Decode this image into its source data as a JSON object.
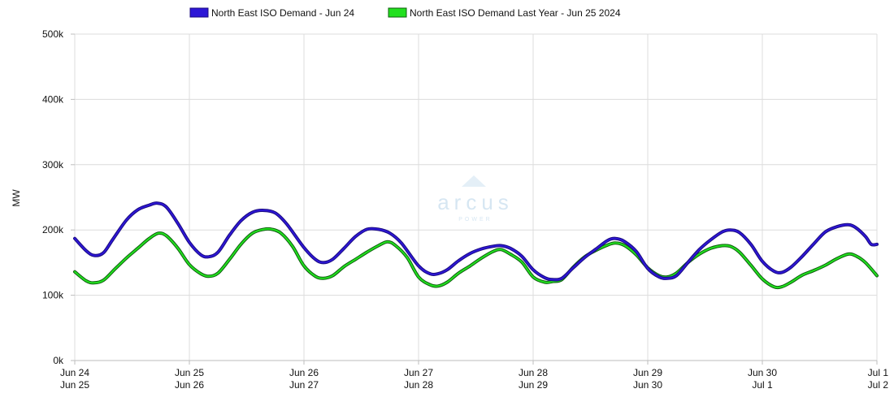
{
  "watermark": {
    "brand": "arcus",
    "sub": "POWER"
  },
  "chart_data": {
    "type": "line",
    "ylabel": "MW",
    "ylim": [
      0,
      500000
    ],
    "y_ticks": [
      {
        "value": 0,
        "label": "0k"
      },
      {
        "value": 100000,
        "label": "100k"
      },
      {
        "value": 200000,
        "label": "200k"
      },
      {
        "value": 300000,
        "label": "300k"
      },
      {
        "value": 400000,
        "label": "400k"
      },
      {
        "value": 500000,
        "label": "500k"
      }
    ],
    "x_range_days": [
      0,
      7
    ],
    "x_ticks": [
      {
        "day": 0,
        "label1": "Jun 24",
        "label2": "Jun 25"
      },
      {
        "day": 1,
        "label1": "Jun 25",
        "label2": "Jun 26"
      },
      {
        "day": 2,
        "label1": "Jun 26",
        "label2": "Jun 27"
      },
      {
        "day": 3,
        "label1": "Jun 27",
        "label2": "Jun 28"
      },
      {
        "day": 4,
        "label1": "Jun 28",
        "label2": "Jun 29"
      },
      {
        "day": 5,
        "label1": "Jun 29",
        "label2": "Jun 30"
      },
      {
        "day": 6,
        "label1": "Jun 30",
        "label2": "Jul 1"
      },
      {
        "day": 7,
        "label1": "Jul 1",
        "label2": "Jul 2"
      }
    ],
    "grid": true,
    "legend_position": "top-center",
    "series": [
      {
        "name": "North East ISO Demand - Jun 24",
        "color": "#2d17d6",
        "outline": "#1a0a80",
        "points": [
          [
            0.0,
            187000
          ],
          [
            0.1,
            168000
          ],
          [
            0.17,
            161000
          ],
          [
            0.25,
            165000
          ],
          [
            0.33,
            185000
          ],
          [
            0.45,
            215000
          ],
          [
            0.55,
            231000
          ],
          [
            0.65,
            238000
          ],
          [
            0.72,
            241000
          ],
          [
            0.8,
            235000
          ],
          [
            0.9,
            210000
          ],
          [
            1.0,
            181000
          ],
          [
            1.1,
            162000
          ],
          [
            1.17,
            159000
          ],
          [
            1.25,
            166000
          ],
          [
            1.35,
            192000
          ],
          [
            1.45,
            214000
          ],
          [
            1.55,
            227000
          ],
          [
            1.65,
            230000
          ],
          [
            1.75,
            226000
          ],
          [
            1.85,
            209000
          ],
          [
            2.0,
            173000
          ],
          [
            2.1,
            155000
          ],
          [
            2.17,
            150000
          ],
          [
            2.25,
            155000
          ],
          [
            2.35,
            172000
          ],
          [
            2.45,
            190000
          ],
          [
            2.55,
            201000
          ],
          [
            2.65,
            201000
          ],
          [
            2.75,
            195000
          ],
          [
            2.85,
            180000
          ],
          [
            3.0,
            145000
          ],
          [
            3.1,
            133000
          ],
          [
            3.17,
            133000
          ],
          [
            3.25,
            139000
          ],
          [
            3.35,
            153000
          ],
          [
            3.45,
            164000
          ],
          [
            3.55,
            171000
          ],
          [
            3.65,
            175000
          ],
          [
            3.72,
            176000
          ],
          [
            3.8,
            172000
          ],
          [
            3.9,
            160000
          ],
          [
            4.0,
            139000
          ],
          [
            4.1,
            127000
          ],
          [
            4.17,
            124000
          ],
          [
            4.25,
            126000
          ],
          [
            4.35,
            142000
          ],
          [
            4.45,
            158000
          ],
          [
            4.55,
            171000
          ],
          [
            4.65,
            184000
          ],
          [
            4.72,
            187000
          ],
          [
            4.8,
            182000
          ],
          [
            4.9,
            167000
          ],
          [
            5.0,
            141000
          ],
          [
            5.1,
            128000
          ],
          [
            5.17,
            126000
          ],
          [
            5.25,
            130000
          ],
          [
            5.35,
            150000
          ],
          [
            5.45,
            170000
          ],
          [
            5.55,
            185000
          ],
          [
            5.65,
            197000
          ],
          [
            5.72,
            200000
          ],
          [
            5.8,
            196000
          ],
          [
            5.9,
            178000
          ],
          [
            6.0,
            152000
          ],
          [
            6.1,
            137000
          ],
          [
            6.17,
            135000
          ],
          [
            6.25,
            143000
          ],
          [
            6.35,
            160000
          ],
          [
            6.45,
            179000
          ],
          [
            6.55,
            197000
          ],
          [
            6.65,
            205000
          ],
          [
            6.75,
            208000
          ],
          [
            6.82,
            203000
          ],
          [
            6.9,
            190000
          ],
          [
            6.95,
            178000
          ],
          [
            7.0,
            178000
          ]
        ]
      },
      {
        "name": "North East ISO Demand Last Year - Jun 25 2024",
        "color": "#22e01f",
        "outline": "#0d5e0d",
        "points": [
          [
            0.0,
            136000
          ],
          [
            0.1,
            122000
          ],
          [
            0.17,
            119000
          ],
          [
            0.25,
            123000
          ],
          [
            0.35,
            140000
          ],
          [
            0.45,
            157000
          ],
          [
            0.55,
            172000
          ],
          [
            0.65,
            187000
          ],
          [
            0.73,
            195000
          ],
          [
            0.8,
            191000
          ],
          [
            0.9,
            172000
          ],
          [
            1.0,
            147000
          ],
          [
            1.1,
            133000
          ],
          [
            1.17,
            129000
          ],
          [
            1.25,
            134000
          ],
          [
            1.35,
            155000
          ],
          [
            1.45,
            178000
          ],
          [
            1.55,
            195000
          ],
          [
            1.65,
            201000
          ],
          [
            1.72,
            201000
          ],
          [
            1.8,
            195000
          ],
          [
            1.9,
            175000
          ],
          [
            2.0,
            145000
          ],
          [
            2.1,
            129000
          ],
          [
            2.17,
            126000
          ],
          [
            2.25,
            130000
          ],
          [
            2.35,
            144000
          ],
          [
            2.45,
            155000
          ],
          [
            2.55,
            166000
          ],
          [
            2.65,
            176000
          ],
          [
            2.73,
            182000
          ],
          [
            2.8,
            176000
          ],
          [
            2.9,
            158000
          ],
          [
            3.0,
            128000
          ],
          [
            3.1,
            116000
          ],
          [
            3.17,
            114000
          ],
          [
            3.25,
            120000
          ],
          [
            3.35,
            134000
          ],
          [
            3.45,
            145000
          ],
          [
            3.55,
            157000
          ],
          [
            3.65,
            167000
          ],
          [
            3.72,
            170000
          ],
          [
            3.8,
            163000
          ],
          [
            3.9,
            151000
          ],
          [
            4.0,
            128000
          ],
          [
            4.1,
            120000
          ],
          [
            4.17,
            121000
          ],
          [
            4.25,
            124000
          ],
          [
            4.35,
            143000
          ],
          [
            4.45,
            159000
          ],
          [
            4.55,
            169000
          ],
          [
            4.65,
            177000
          ],
          [
            4.72,
            180000
          ],
          [
            4.8,
            176000
          ],
          [
            4.9,
            162000
          ],
          [
            5.0,
            142000
          ],
          [
            5.1,
            130000
          ],
          [
            5.17,
            128000
          ],
          [
            5.25,
            134000
          ],
          [
            5.35,
            150000
          ],
          [
            5.45,
            163000
          ],
          [
            5.55,
            172000
          ],
          [
            5.65,
            176000
          ],
          [
            5.72,
            175000
          ],
          [
            5.8,
            166000
          ],
          [
            5.9,
            146000
          ],
          [
            6.0,
            125000
          ],
          [
            6.1,
            113000
          ],
          [
            6.17,
            113000
          ],
          [
            6.25,
            120000
          ],
          [
            6.35,
            131000
          ],
          [
            6.45,
            138000
          ],
          [
            6.55,
            146000
          ],
          [
            6.65,
            156000
          ],
          [
            6.75,
            163000
          ],
          [
            6.82,
            160000
          ],
          [
            6.9,
            150000
          ],
          [
            7.0,
            130000
          ]
        ]
      }
    ]
  }
}
